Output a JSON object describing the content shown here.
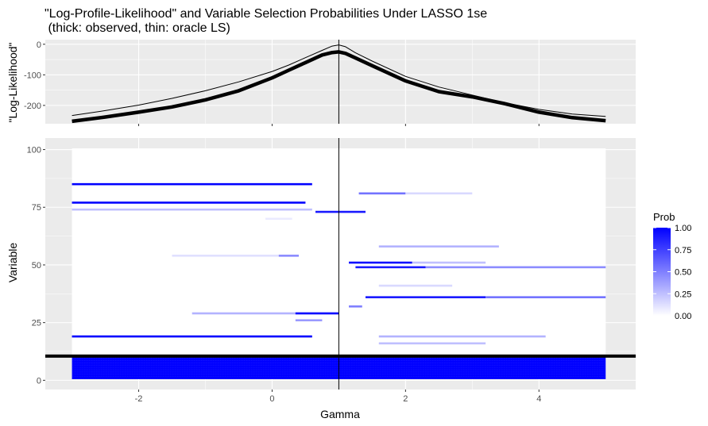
{
  "title_line1": "\"Log-Profile-Likelihood\" and Variable Selection Probabilities Under LASSO 1se",
  "title_line2": " (thick: observed, thin: oracle LS)",
  "colors": {
    "panel_bg": "#ebebeb",
    "grid": "#ffffff",
    "prob_high": "#0000ff",
    "prob_low": "#ffffff",
    "line": "#000000"
  },
  "chart_data": [
    {
      "type": "line",
      "title": "\"Log-Profile-Likelihood\" and Variable Selection Probabilities Under LASSO 1se (thick: observed, thin: oracle LS)",
      "xlabel": "",
      "ylabel": "\"Log-Likelihood\"",
      "xlim": [
        -3.4,
        5.45
      ],
      "ylim": [
        -260,
        15
      ],
      "yticks": [
        0,
        -100,
        -200
      ],
      "ytick_labels": [
        "0",
        "-100",
        "-200"
      ],
      "vline_x": 1,
      "series": [
        {
          "name": "observed",
          "x": [
            -3,
            -2.5,
            -2,
            -1.5,
            -1,
            -0.5,
            0,
            0.25,
            0.5,
            0.75,
            0.9,
            1,
            1.1,
            1.25,
            1.5,
            2,
            2.5,
            3,
            3.5,
            4,
            4.5,
            5
          ],
          "y": [
            -252,
            -238,
            -222,
            -205,
            -182,
            -152,
            -110,
            -85,
            -60,
            -35,
            -27,
            -25,
            -30,
            -45,
            -70,
            -120,
            -155,
            -172,
            -195,
            -222,
            -240,
            -250
          ]
        },
        {
          "name": "oracle",
          "x": [
            -3,
            -2.5,
            -2,
            -1.5,
            -1,
            -0.5,
            0,
            0.25,
            0.5,
            0.75,
            0.9,
            1,
            1.1,
            1.25,
            1.5,
            2,
            2.5,
            3,
            3.5,
            4,
            4.5,
            5
          ],
          "y": [
            -233,
            -217,
            -199,
            -177,
            -152,
            -123,
            -89,
            -68,
            -44,
            -20,
            -6,
            -2,
            -8,
            -28,
            -55,
            -105,
            -140,
            -166,
            -192,
            -213,
            -228,
            -236
          ]
        }
      ]
    },
    {
      "type": "heatmap",
      "xlabel": "Gamma",
      "ylabel": "Variable",
      "xlim": [
        -3.4,
        5.45
      ],
      "ylim": [
        -4,
        105
      ],
      "xticks": [
        -2,
        0,
        2,
        4
      ],
      "xtick_labels": [
        "-2",
        "0",
        "2",
        "4"
      ],
      "yticks": [
        0,
        25,
        50,
        75,
        100
      ],
      "ytick_labels": [
        "0",
        "25",
        "50",
        "75",
        "100"
      ],
      "vline_x": 1,
      "hline_y": 10.5,
      "x_range": [
        -3,
        5
      ],
      "legend": {
        "title": "Prob",
        "position": "right",
        "ticks": [
          1.0,
          0.75,
          0.5,
          0.25,
          0.0
        ],
        "tick_labels": [
          "1.00",
          "0.75",
          "0.50",
          "0.25",
          "0.00"
        ]
      },
      "block": {
        "var_from": 1,
        "var_to": 10,
        "x_from": -3,
        "x_to": 5,
        "prob": 1.0
      },
      "segments": [
        {
          "var": 85,
          "x_from": -3,
          "x_to": 0.6,
          "prob": 1.0
        },
        {
          "var": 77,
          "x_from": -3,
          "x_to": 0.5,
          "prob": 1.0
        },
        {
          "var": 74,
          "x_from": -3,
          "x_to": 0.6,
          "prob": 0.25
        },
        {
          "var": 73,
          "x_from": 0.65,
          "x_to": 1.4,
          "prob": 0.9
        },
        {
          "var": 70,
          "x_from": -0.1,
          "x_to": 0.3,
          "prob": 0.08
        },
        {
          "var": 54,
          "x_from": -1.5,
          "x_to": 0.4,
          "prob": 0.12
        },
        {
          "var": 54,
          "x_from": 0.1,
          "x_to": 0.4,
          "prob": 0.45
        },
        {
          "var": 29,
          "x_from": -1.2,
          "x_to": 1.0,
          "prob": 0.3
        },
        {
          "var": 29,
          "x_from": 0.35,
          "x_to": 1.0,
          "prob": 0.95
        },
        {
          "var": 26,
          "x_from": 0.35,
          "x_to": 0.75,
          "prob": 0.4
        },
        {
          "var": 19,
          "x_from": -3,
          "x_to": 0.6,
          "prob": 1.0
        },
        {
          "var": 81,
          "x_from": 1.3,
          "x_to": 2.0,
          "prob": 0.55
        },
        {
          "var": 81,
          "x_from": 2.0,
          "x_to": 3.0,
          "prob": 0.15
        },
        {
          "var": 58,
          "x_from": 1.6,
          "x_to": 3.4,
          "prob": 0.3
        },
        {
          "var": 51,
          "x_from": 1.15,
          "x_to": 2.1,
          "prob": 0.95
        },
        {
          "var": 51,
          "x_from": 2.1,
          "x_to": 3.2,
          "prob": 0.25
        },
        {
          "var": 49,
          "x_from": 1.25,
          "x_to": 2.3,
          "prob": 0.9
        },
        {
          "var": 49,
          "x_from": 2.3,
          "x_to": 5,
          "prob": 0.45
        },
        {
          "var": 41,
          "x_from": 1.6,
          "x_to": 2.7,
          "prob": 0.15
        },
        {
          "var": 36,
          "x_from": 1.4,
          "x_to": 3.2,
          "prob": 0.9
        },
        {
          "var": 36,
          "x_from": 3.2,
          "x_to": 5,
          "prob": 0.55
        },
        {
          "var": 32,
          "x_from": 1.15,
          "x_to": 1.35,
          "prob": 0.5
        },
        {
          "var": 19,
          "x_from": 1.6,
          "x_to": 4.1,
          "prob": 0.3
        },
        {
          "var": 16,
          "x_from": 1.6,
          "x_to": 3.2,
          "prob": 0.25
        }
      ]
    }
  ]
}
